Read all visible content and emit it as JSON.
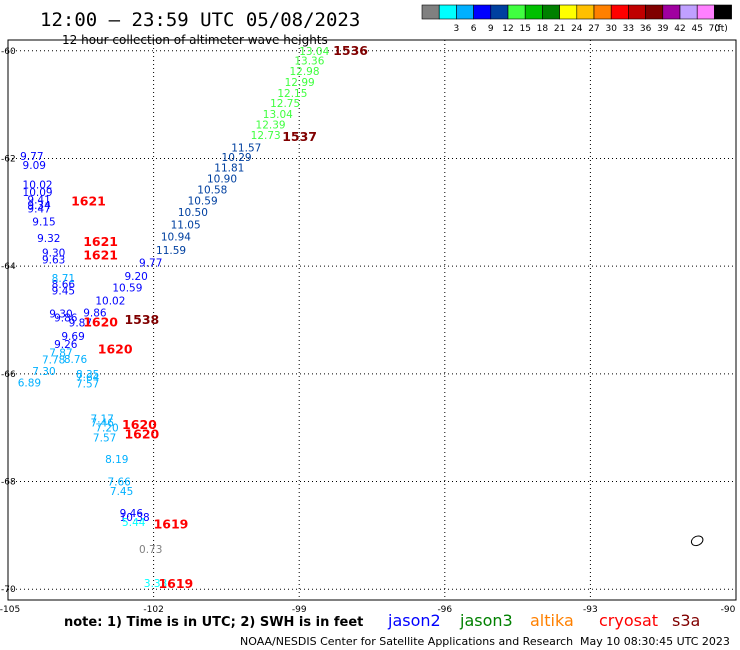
{
  "title": "12:00 — 23:59 UTC 05/08/2023",
  "subtitle": "12 hour collection of altimeter wave heights",
  "colorbar": {
    "bins": [
      {
        "color": "#808080",
        "label": ""
      },
      {
        "color": "#00ffff",
        "label": "3"
      },
      {
        "color": "#00b0ff",
        "label": "6"
      },
      {
        "color": "#0000ff",
        "label": "9"
      },
      {
        "color": "#0040a0",
        "label": "12"
      },
      {
        "color": "#40ff40",
        "label": "15"
      },
      {
        "color": "#00c000",
        "label": "18"
      },
      {
        "color": "#008000",
        "label": "21"
      },
      {
        "color": "#ffff00",
        "label": "24"
      },
      {
        "color": "#ffc000",
        "label": "27"
      },
      {
        "color": "#ff8000",
        "label": "30"
      },
      {
        "color": "#ff0000",
        "label": "33"
      },
      {
        "color": "#c00000",
        "label": "36"
      },
      {
        "color": "#800000",
        "label": "39"
      },
      {
        "color": "#a000a0",
        "label": "42"
      },
      {
        "color": "#c0a0ff",
        "label": "45"
      },
      {
        "color": "#ff80ff",
        "label": "70"
      },
      {
        "color": "#000000",
        "label": "(ft)"
      }
    ]
  },
  "chart_data": {
    "type": "scatter",
    "xlim": [
      -105,
      -90
    ],
    "ylim": [
      -70.2,
      -59.8
    ],
    "x_ticks": [
      {
        "v": -105,
        "label": "-105"
      },
      {
        "v": -102,
        "label": "-102"
      },
      {
        "v": -99,
        "label": "-99"
      },
      {
        "v": -96,
        "label": "-96"
      },
      {
        "v": -93,
        "label": "-93"
      },
      {
        "v": -90,
        "label": "-90"
      }
    ],
    "y_ticks": [
      {
        "v": -60,
        "label": "-60"
      },
      {
        "v": -62,
        "label": "-62"
      },
      {
        "v": -64,
        "label": "-64"
      },
      {
        "v": -66,
        "label": "-66"
      },
      {
        "v": -68,
        "label": "-68"
      },
      {
        "v": -70,
        "label": "-70"
      }
    ],
    "grid": true,
    "wave_labels": [
      {
        "lon": -99.0,
        "lat": -60.0,
        "text": "13.04",
        "color": "#40ff40"
      },
      {
        "lon": -99.1,
        "lat": -60.18,
        "text": "13.36",
        "color": "#40ff40"
      },
      {
        "lon": -99.2,
        "lat": -60.38,
        "text": "12.98",
        "color": "#40ff40"
      },
      {
        "lon": -99.3,
        "lat": -60.58,
        "text": "12.99",
        "color": "#40ff40"
      },
      {
        "lon": -99.45,
        "lat": -60.78,
        "text": "12.15",
        "color": "#40ff40"
      },
      {
        "lon": -99.6,
        "lat": -60.97,
        "text": "12.75",
        "color": "#40ff40"
      },
      {
        "lon": -99.75,
        "lat": -61.17,
        "text": "13.04",
        "color": "#40ff40"
      },
      {
        "lon": -99.9,
        "lat": -61.37,
        "text": "12.39",
        "color": "#40ff40"
      },
      {
        "lon": -100.0,
        "lat": -61.56,
        "text": "12.73",
        "color": "#40ff40"
      },
      {
        "lon": -100.4,
        "lat": -61.8,
        "text": "11.57",
        "color": "#0040a0"
      },
      {
        "lon": -100.6,
        "lat": -61.97,
        "text": "10.29",
        "color": "#0040a0"
      },
      {
        "lon": -100.75,
        "lat": -62.17,
        "text": "11.81",
        "color": "#0040a0"
      },
      {
        "lon": -100.9,
        "lat": -62.37,
        "text": "10.90",
        "color": "#0040a0"
      },
      {
        "lon": -101.1,
        "lat": -62.58,
        "text": "10.58",
        "color": "#0040a0"
      },
      {
        "lon": -101.3,
        "lat": -62.78,
        "text": "10.59",
        "color": "#0040a0"
      },
      {
        "lon": -101.5,
        "lat": -62.99,
        "text": "10.50",
        "color": "#0040a0"
      },
      {
        "lon": -101.65,
        "lat": -63.23,
        "text": "11.05",
        "color": "#0040a0"
      },
      {
        "lon": -101.85,
        "lat": -63.45,
        "text": "10.94",
        "color": "#0040a0"
      },
      {
        "lon": -101.95,
        "lat": -63.7,
        "text": "11.59",
        "color": "#0040a0"
      },
      {
        "lon": -102.3,
        "lat": -63.93,
        "text": "9.77",
        "color": "#0000ff"
      },
      {
        "lon": -102.6,
        "lat": -64.18,
        "text": "9.20",
        "color": "#0000ff"
      },
      {
        "lon": -102.85,
        "lat": -64.4,
        "text": "10.59",
        "color": "#0000ff"
      },
      {
        "lon": -103.2,
        "lat": -64.64,
        "text": "10.02",
        "color": "#0000ff"
      },
      {
        "lon": -103.45,
        "lat": -64.86,
        "text": "9.86",
        "color": "#0000ff"
      },
      {
        "lon": -103.75,
        "lat": -65.05,
        "text": "9.87",
        "color": "#0000ff"
      },
      {
        "lon": -104.05,
        "lat": -64.95,
        "text": "9.86",
        "color": "#0000ff"
      },
      {
        "lon": -104.15,
        "lat": -64.88,
        "text": "9.30",
        "color": "#0000ff"
      },
      {
        "lon": -103.9,
        "lat": -65.3,
        "text": "9.69",
        "color": "#0000ff"
      },
      {
        "lon": -104.05,
        "lat": -65.45,
        "text": "9.26",
        "color": "#0000ff"
      },
      {
        "lon": -104.1,
        "lat": -64.33,
        "text": "8.66",
        "color": "#0000ff"
      },
      {
        "lon": -104.1,
        "lat": -64.45,
        "text": "9.45",
        "color": "#0000ff"
      },
      {
        "lon": -104.75,
        "lat": -61.95,
        "text": "9.77",
        "color": "#0000ff"
      },
      {
        "lon": -104.7,
        "lat": -62.12,
        "text": "9.09",
        "color": "#0000ff"
      },
      {
        "lon": -104.7,
        "lat": -62.48,
        "text": "10.02",
        "color": "#0000ff"
      },
      {
        "lon": -104.7,
        "lat": -62.62,
        "text": "10.09",
        "color": "#0000ff"
      },
      {
        "lon": -104.6,
        "lat": -62.76,
        "text": "9.41",
        "color": "#0000ff"
      },
      {
        "lon": -104.6,
        "lat": -62.86,
        "text": "9.34",
        "color": "#0000ff"
      },
      {
        "lon": -104.6,
        "lat": -62.93,
        "text": "9.47",
        "color": "#0000ff"
      },
      {
        "lon": -104.5,
        "lat": -63.17,
        "text": "9.15",
        "color": "#0000ff"
      },
      {
        "lon": -104.4,
        "lat": -63.48,
        "text": "9.32",
        "color": "#0000ff"
      },
      {
        "lon": -104.3,
        "lat": -63.75,
        "text": "9.30",
        "color": "#0000ff"
      },
      {
        "lon": -104.3,
        "lat": -63.88,
        "text": "9.63",
        "color": "#0000ff"
      },
      {
        "lon": -104.1,
        "lat": -64.22,
        "text": "8.71",
        "color": "#00b0ff"
      },
      {
        "lon": -104.15,
        "lat": -65.6,
        "text": "7.87",
        "color": "#00b0ff"
      },
      {
        "lon": -104.3,
        "lat": -65.73,
        "text": "7.78",
        "color": "#00b0ff"
      },
      {
        "lon": -103.85,
        "lat": -65.72,
        "text": "8.76",
        "color": "#00b0ff"
      },
      {
        "lon": -104.5,
        "lat": -65.95,
        "text": "7.30",
        "color": "#00b0ff"
      },
      {
        "lon": -104.8,
        "lat": -66.16,
        "text": "6.89",
        "color": "#00b0ff"
      },
      {
        "lon": -103.6,
        "lat": -66.0,
        "text": "8.35",
        "color": "#00b0ff"
      },
      {
        "lon": -103.6,
        "lat": -66.06,
        "text": "7.64",
        "color": "#00b0ff"
      },
      {
        "lon": -103.6,
        "lat": -66.18,
        "text": "7.57",
        "color": "#00b0ff"
      },
      {
        "lon": -103.3,
        "lat": -66.83,
        "text": "7.17",
        "color": "#00b0ff"
      },
      {
        "lon": -103.3,
        "lat": -66.9,
        "text": "7.46",
        "color": "#00b0ff"
      },
      {
        "lon": -103.2,
        "lat": -67.0,
        "text": "7.20",
        "color": "#00b0ff"
      },
      {
        "lon": -103.25,
        "lat": -67.18,
        "text": "7.57",
        "color": "#00b0ff"
      },
      {
        "lon": -103.0,
        "lat": -67.58,
        "text": "8.19",
        "color": "#00b0ff"
      },
      {
        "lon": -102.95,
        "lat": -68.0,
        "text": "7.66",
        "color": "#00b0ff"
      },
      {
        "lon": -102.9,
        "lat": -68.18,
        "text": "7.45",
        "color": "#00b0ff"
      },
      {
        "lon": -102.7,
        "lat": -68.58,
        "text": "9.46",
        "color": "#0000ff"
      },
      {
        "lon": -102.7,
        "lat": -68.66,
        "text": "10.38",
        "color": "#0000ff"
      },
      {
        "lon": -102.65,
        "lat": -68.75,
        "text": "5.44",
        "color": "#00ffff"
      },
      {
        "lon": -102.3,
        "lat": -69.25,
        "text": "0.73",
        "color": "#808080"
      },
      {
        "lon": -102.2,
        "lat": -69.88,
        "text": "3.33",
        "color": "#00ffff"
      }
    ],
    "time_labels": [
      {
        "lon": -98.3,
        "lat": -60.0,
        "text": "1536",
        "color": "#800000"
      },
      {
        "lon": -99.35,
        "lat": -61.6,
        "text": "1537",
        "color": "#800000"
      },
      {
        "lon": -103.7,
        "lat": -62.8,
        "text": "1621",
        "color": "#ff0000"
      },
      {
        "lon": -103.45,
        "lat": -63.55,
        "text": "1621",
        "color": "#ff0000"
      },
      {
        "lon": -103.45,
        "lat": -63.8,
        "text": "1621",
        "color": "#ff0000"
      },
      {
        "lon": -102.6,
        "lat": -65.0,
        "text": "1538",
        "color": "#800000"
      },
      {
        "lon": -103.45,
        "lat": -65.05,
        "text": "1620",
        "color": "#ff0000"
      },
      {
        "lon": -103.15,
        "lat": -65.55,
        "text": "1620",
        "color": "#ff0000"
      },
      {
        "lon": -102.65,
        "lat": -66.95,
        "text": "1620",
        "color": "#ff0000"
      },
      {
        "lon": -102.6,
        "lat": -67.13,
        "text": "1620",
        "color": "#ff0000"
      },
      {
        "lon": -102.0,
        "lat": -68.8,
        "text": "1619",
        "color": "#ff0000"
      },
      {
        "lon": -101.9,
        "lat": -69.9,
        "text": "1619",
        "color": "#ff0000"
      }
    ],
    "coastline": {
      "lon": -90.8,
      "lat": -69.1
    }
  },
  "footer": {
    "note": "note:  1) Time is in UTC;  2) SWH is in feet",
    "satellites": [
      {
        "name": "jason2",
        "color": "#0000ff"
      },
      {
        "name": "jason3",
        "color": "#008000"
      },
      {
        "name": "altika",
        "color": "#ff8000"
      },
      {
        "name": "cryosat",
        "color": "#ff0000"
      },
      {
        "name": "s3a",
        "color": "#800000"
      }
    ],
    "credit": "NOAA/NESDIS Center for Satellite Applications and Research",
    "timestamp": "May 10 08:30:45 UTC 2023"
  }
}
